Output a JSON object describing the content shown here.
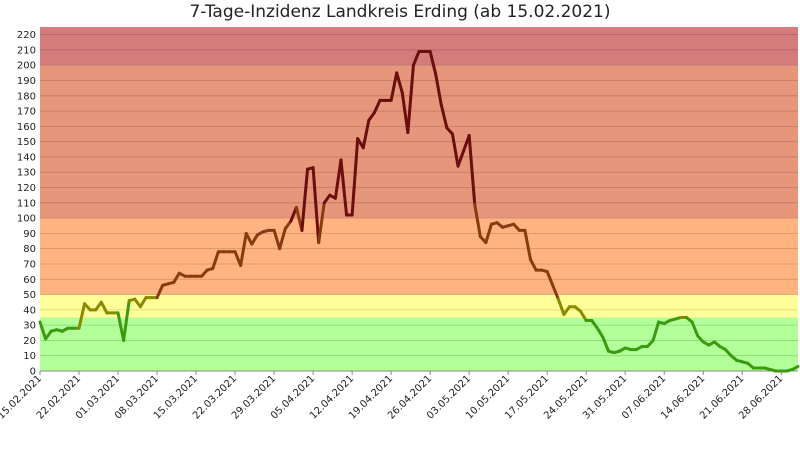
{
  "chart_data": {
    "type": "line",
    "title": "7-Tage-Inzidenz Landkreis Erding (ab 15.02.2021)",
    "xlabel": "",
    "ylabel": "",
    "ylim": [
      0,
      225
    ],
    "yticks": [
      0,
      10,
      20,
      30,
      40,
      50,
      60,
      70,
      80,
      90,
      100,
      110,
      120,
      130,
      140,
      150,
      160,
      170,
      180,
      190,
      200,
      210,
      220
    ],
    "x_tick_labels": [
      "15.02.2021",
      "22.02.2021",
      "01.03.2021",
      "08.03.2021",
      "15.03.2021",
      "22.03.2021",
      "29.03.2021",
      "05.04.2021",
      "12.04.2021",
      "19.04.2021",
      "26.04.2021",
      "03.05.2021",
      "10.05.2021",
      "17.05.2021",
      "24.05.2021",
      "31.05.2021",
      "07.06.2021",
      "14.06.2021",
      "21.06.2021",
      "28.06.2021"
    ],
    "grid": true,
    "bands": [
      {
        "from": 0,
        "to": 35,
        "color": "#b3ff99"
      },
      {
        "from": 35,
        "to": 50,
        "color": "#ffff99"
      },
      {
        "from": 50,
        "to": 100,
        "color": "#ffb380"
      },
      {
        "from": 100,
        "to": 200,
        "color": "#e6967a"
      },
      {
        "from": 200,
        "to": 225,
        "color": "#d47c7c"
      }
    ],
    "colors": {
      "green": "#3a9a10",
      "olive": "#8a8a00",
      "brown": "#8a3a10",
      "darkred": "#6a0e0e"
    },
    "series": [
      {
        "values": [
          32,
          21,
          26,
          27,
          26,
          28,
          28,
          28,
          44,
          40,
          40,
          45,
          38,
          38,
          38,
          20,
          46,
          47,
          42,
          48,
          48,
          48,
          56,
          57,
          58,
          64,
          62,
          62,
          62,
          62,
          66,
          67,
          78,
          78,
          78,
          78,
          69,
          90,
          83,
          89,
          91,
          92,
          92,
          80,
          93,
          98,
          107,
          92,
          132,
          133,
          84,
          110,
          115,
          113,
          138,
          102,
          102,
          152,
          146,
          164,
          169,
          177,
          177,
          177,
          195,
          182,
          156,
          200,
          209,
          209,
          209,
          194,
          174,
          159,
          155,
          134,
          144,
          154,
          109,
          88,
          84,
          96,
          97,
          94,
          95,
          96,
          92,
          92,
          73,
          66,
          66,
          65,
          56,
          47,
          37,
          42,
          42,
          39,
          33,
          33,
          28,
          22,
          13,
          12,
          13,
          15,
          14,
          14,
          16,
          16,
          20,
          32,
          31,
          33,
          34,
          35,
          35,
          32,
          23,
          19,
          17,
          19,
          16,
          14,
          10,
          7,
          6,
          5,
          2,
          2,
          2,
          1,
          0,
          0,
          0,
          1,
          3
        ]
      }
    ]
  }
}
